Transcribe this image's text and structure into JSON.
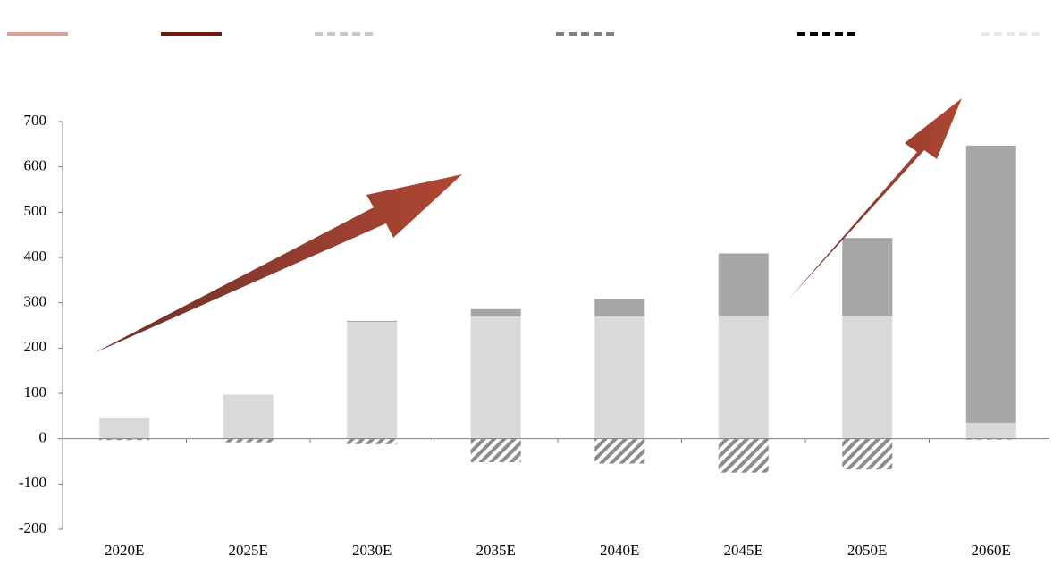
{
  "chart_data": {
    "type": "stacked_bar",
    "categories": [
      "2020E",
      "2025E",
      "2030E",
      "2035E",
      "2040E",
      "2045E",
      "2050E",
      "2060E"
    ],
    "series": [
      {
        "color": "#d9d9d9",
        "values": [
          45,
          97,
          258,
          270,
          270,
          271,
          271,
          35
        ]
      },
      {
        "color": "#a6a6a6",
        "values": [
          0,
          0,
          2,
          16,
          38,
          138,
          172,
          612
        ]
      },
      {
        "color": "#8c8c8c",
        "hatch": true,
        "values": [
          -3,
          -8,
          -12,
          -52,
          -55,
          -75,
          -68,
          -2
        ]
      }
    ],
    "ylim": [
      -200,
      700
    ],
    "yticks": [
      -200,
      -100,
      0,
      100,
      200,
      300,
      400,
      500,
      600,
      700
    ],
    "grid": false
  }
}
